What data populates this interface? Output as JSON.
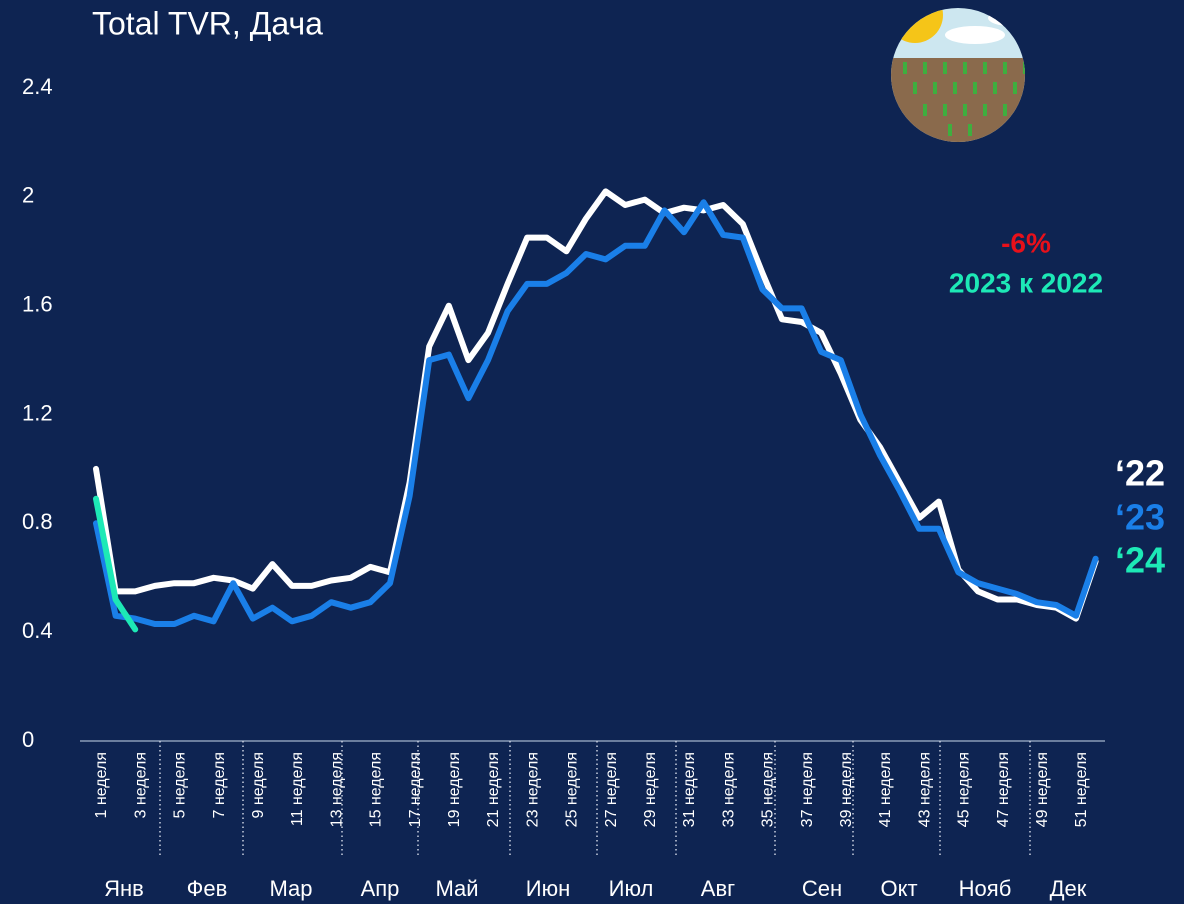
{
  "chart_data": {
    "type": "line",
    "title": "Total TVR, Дача",
    "categories": [
      "1 неделя",
      null,
      "3 неделя",
      null,
      "5 неделя",
      null,
      "7 неделя",
      null,
      "9 неделя",
      null,
      "11 неделя",
      null,
      "13 неделя",
      null,
      "15 неделя",
      null,
      "17 неделя",
      null,
      "19 неделя",
      null,
      "21 неделя",
      null,
      "23 неделя",
      null,
      "25 неделя",
      null,
      "27 неделя",
      null,
      "29 неделя",
      null,
      "31 неделя",
      null,
      "33 неделя",
      null,
      "35 неделя",
      null,
      "37 неделя",
      null,
      "39 неделя",
      null,
      "41 неделя",
      null,
      "43 неделя",
      null,
      "45 неделя",
      null,
      "47 неделя",
      null,
      "49 неделя",
      null,
      "51 неделя",
      null
    ],
    "months": [
      "Янв",
      "Фев",
      "Мар",
      "Апр",
      "Май",
      "Июн",
      "Июл",
      "Авг",
      "Сен",
      "Окт",
      "Нояб",
      "Дек"
    ],
    "series": [
      {
        "name": "‘22",
        "color": "#ffffff",
        "values": [
          1.0,
          0.55,
          0.55,
          0.57,
          0.58,
          0.58,
          0.6,
          0.59,
          0.56,
          0.65,
          0.57,
          0.57,
          0.59,
          0.6,
          0.64,
          0.62,
          0.95,
          1.45,
          1.6,
          1.4,
          1.5,
          1.68,
          1.85,
          1.85,
          1.8,
          1.92,
          2.02,
          1.97,
          1.99,
          1.94,
          1.96,
          1.95,
          1.97,
          1.9,
          1.72,
          1.55,
          1.54,
          1.5,
          1.35,
          1.18,
          1.08,
          0.95,
          0.82,
          0.88,
          0.63,
          0.55,
          0.52,
          0.52,
          0.5,
          0.49,
          0.45,
          0.66
        ]
      },
      {
        "name": "‘23",
        "color": "#1a7fe8",
        "values": [
          0.8,
          0.46,
          0.45,
          0.43,
          0.43,
          0.46,
          0.44,
          0.58,
          0.45,
          0.49,
          0.44,
          0.46,
          0.51,
          0.49,
          0.51,
          0.58,
          0.9,
          1.4,
          1.42,
          1.26,
          1.4,
          1.58,
          1.68,
          1.68,
          1.72,
          1.79,
          1.77,
          1.82,
          1.82,
          1.95,
          1.87,
          1.98,
          1.86,
          1.85,
          1.66,
          1.59,
          1.59,
          1.43,
          1.4,
          1.2,
          1.05,
          0.92,
          0.78,
          0.78,
          0.62,
          0.58,
          0.56,
          0.54,
          0.51,
          0.5,
          0.46,
          0.67
        ]
      },
      {
        "name": "‘24",
        "color": "#1de9b6",
        "values": [
          0.89,
          0.52,
          0.41,
          null,
          null,
          null,
          null,
          null,
          null,
          null,
          null,
          null,
          null,
          null,
          null,
          null,
          null,
          null,
          null,
          null,
          null,
          null,
          null,
          null,
          null,
          null,
          null,
          null,
          null,
          null,
          null,
          null,
          null,
          null,
          null,
          null,
          null,
          null,
          null,
          null,
          null,
          null,
          null,
          null,
          null,
          null,
          null,
          null,
          null,
          null,
          null,
          null
        ]
      }
    ],
    "annotations": [
      {
        "text": "-6%",
        "color": "#e8101a"
      },
      {
        "text": "2023 к 2022",
        "color": "#1de9b6"
      }
    ],
    "ylim": [
      0,
      2.4
    ],
    "yticks": [
      0,
      0.4,
      0.8,
      1.2,
      1.6,
      2,
      2.4
    ]
  }
}
